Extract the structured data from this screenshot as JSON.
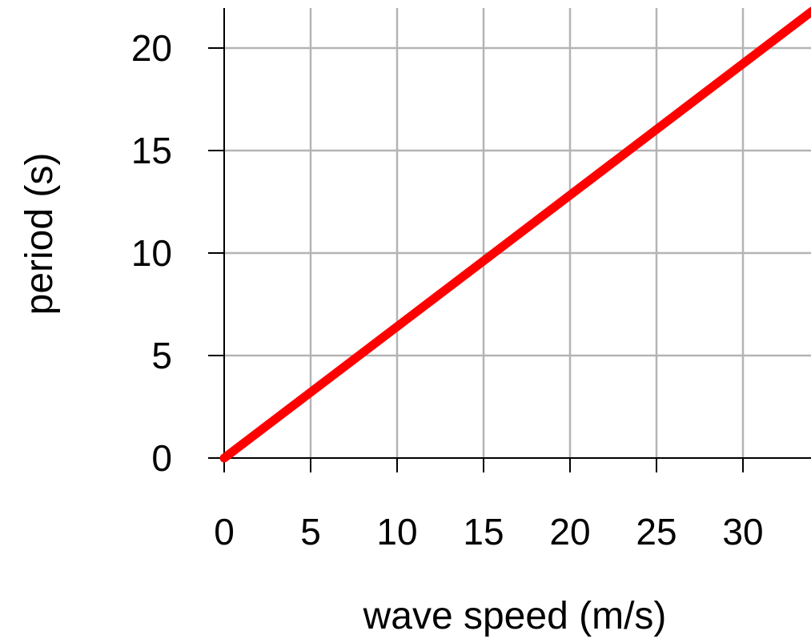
{
  "chart_data": {
    "type": "line",
    "title": "",
    "xlabel": "wave speed (m/s)",
    "ylabel": "period (s)",
    "xlim": [
      0,
      34
    ],
    "ylim": [
      0,
      21
    ],
    "x_ticks": [
      0,
      5,
      10,
      15,
      20,
      25,
      30
    ],
    "y_ticks": [
      0,
      5,
      10,
      15,
      20
    ],
    "x_tick_labels": [
      "0",
      "5",
      "10",
      "15",
      "20",
      "25",
      "30"
    ],
    "y_tick_labels": [
      "0",
      "5",
      "10",
      "15",
      "20"
    ],
    "grid": true,
    "legend": "none",
    "series": [
      {
        "color": "#ff0000",
        "x": [
          0,
          34
        ],
        "y": [
          0,
          21.8
        ]
      }
    ]
  }
}
